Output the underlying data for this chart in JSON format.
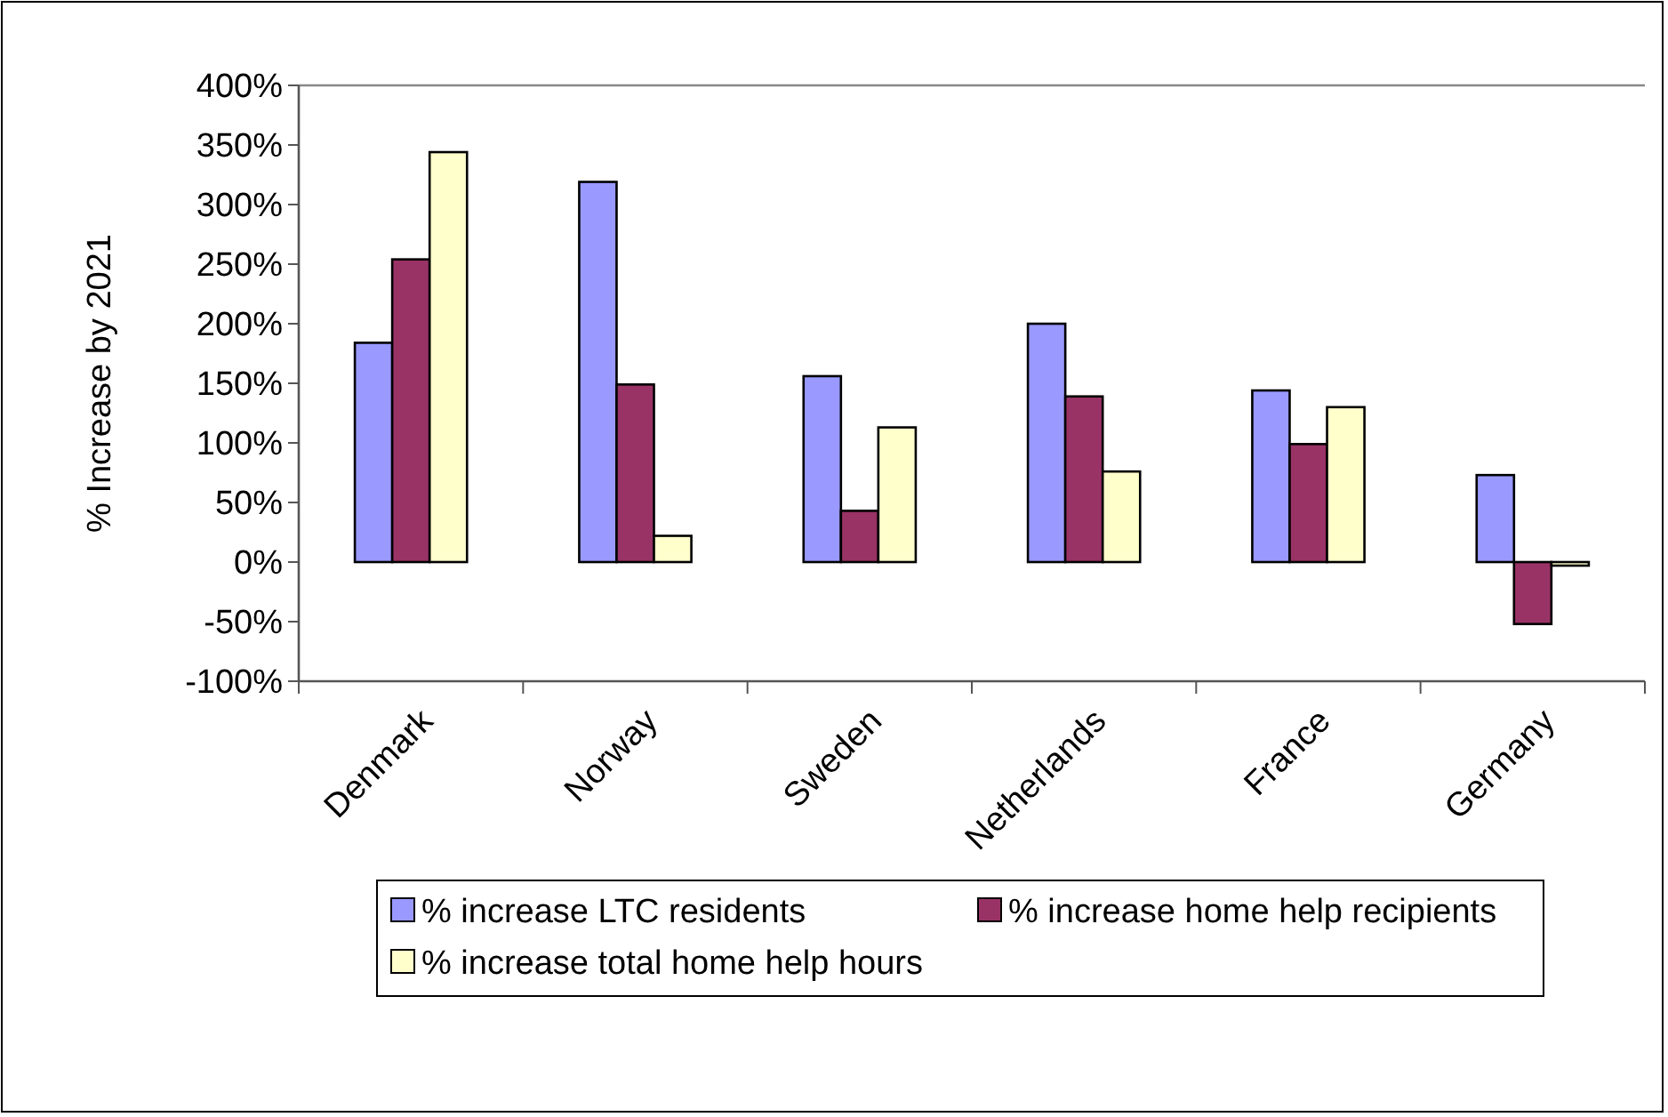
{
  "chart_data": {
    "type": "bar",
    "ylabel": "% Increase by 2021",
    "categories": [
      "Denmark",
      "Norway",
      "Sweden",
      "Netherlands",
      "France",
      "Germany"
    ],
    "series": [
      {
        "name": "% increase LTC residents",
        "color": "#9999ff",
        "values": [
          184,
          319,
          156,
          200,
          144,
          73
        ]
      },
      {
        "name": "% increase home help recipients",
        "color": "#993366",
        "values": [
          254,
          149,
          43,
          139,
          99,
          -52
        ]
      },
      {
        "name": "% increase total home help hours",
        "color": "#ffffcc",
        "values": [
          344,
          22,
          113,
          76,
          130,
          -3
        ]
      }
    ],
    "ylim": [
      -100,
      400
    ],
    "yticks": [
      {
        "value": -100,
        "label": "-100%"
      },
      {
        "value": -50,
        "label": "-50%"
      },
      {
        "value": 0,
        "label": "0%"
      },
      {
        "value": 50,
        "label": "50%"
      },
      {
        "value": 100,
        "label": "100%"
      },
      {
        "value": 150,
        "label": "150%"
      },
      {
        "value": 200,
        "label": "200%"
      },
      {
        "value": 250,
        "label": "250%"
      },
      {
        "value": 300,
        "label": "300%"
      },
      {
        "value": 350,
        "label": "350%"
      },
      {
        "value": 400,
        "label": "400%"
      }
    ],
    "grid": false,
    "legend": "bottom"
  }
}
